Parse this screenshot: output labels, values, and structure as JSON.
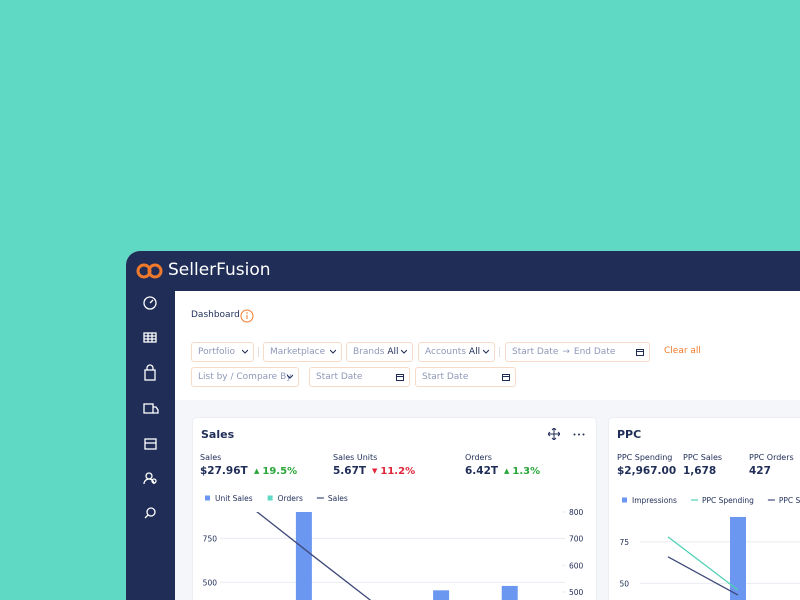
{
  "app": {
    "name": "SellerFusion"
  },
  "page": {
    "title": "Dashboard"
  },
  "filters": {
    "portfolio": "Portfolio",
    "marketplace": "Marketplace",
    "brands": {
      "label": "Brands",
      "value": "All"
    },
    "accounts": {
      "label": "Accounts",
      "value": "All"
    },
    "date_range": {
      "start": "Start Date",
      "end": "End Date"
    },
    "clear": "Clear all",
    "list_by": "List by / Compare By",
    "date_1": "Start Date",
    "date_2": "Start Date"
  },
  "cards": [
    {
      "title": "Sales",
      "kpis": [
        {
          "label": "Sales",
          "value": "$27.96T",
          "change": "19.5%",
          "direction": "up"
        },
        {
          "label": "Sales Units",
          "value": "5.67T",
          "change": "11.2%",
          "direction": "down"
        },
        {
          "label": "Orders",
          "value": "6.42T",
          "change": "1.3%",
          "direction": "up"
        }
      ],
      "chart": {
        "type": "bar-line",
        "categories": [
          null,
          null,
          null,
          null,
          null
        ],
        "series": [
          {
            "name": "Unit Sales",
            "type": "bar",
            "color": "#6b97f0",
            "values": [
              null,
              900,
              null,
              455,
              480
            ]
          },
          {
            "name": "Orders",
            "type": "bar",
            "color": "#5fd9c4",
            "values": [
              null,
              null,
              null,
              null,
              null
            ]
          },
          {
            "name": "Sales",
            "type": "line",
            "axis": "y2",
            "color": "#3f4a7a",
            "values": [
              841,
              639,
              440,
              null,
              null
            ]
          }
        ],
        "ylim": [
          400,
          900
        ],
        "yticks": [
          500,
          750
        ],
        "y2lim": [
          470,
          800
        ],
        "y2ticks": [
          500,
          600,
          700,
          800
        ],
        "grid": true
      }
    },
    {
      "title": "PPC",
      "kpis": [
        {
          "label": "PPC Spending",
          "value": "$2,967.00"
        },
        {
          "label": "PPC Sales",
          "value": "1,678"
        },
        {
          "label": "PPC Orders",
          "value": "427"
        }
      ],
      "chart": {
        "type": "bar-line",
        "categories": [
          null,
          null,
          null
        ],
        "series": [
          {
            "name": "Impressions",
            "type": "bar",
            "color": "#6b97f0",
            "values": [
              null,
              90,
              null
            ]
          },
          {
            "name": "PPC Spending",
            "type": "line",
            "color": "#4fd1b5",
            "values": [
              78,
              46,
              null
            ]
          },
          {
            "name": "PPC Sales",
            "type": "line",
            "color": "#3f4a7a",
            "values": [
              66,
              43,
              null
            ]
          }
        ],
        "ylim": [
          40,
          93
        ],
        "yticks": [
          50,
          75
        ],
        "grid": true
      }
    }
  ]
}
